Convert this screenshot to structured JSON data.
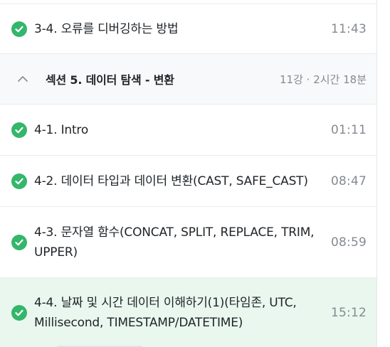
{
  "curriculum": {
    "prev_lesson": {
      "title": "3-4. 오류를 디버깅하는 방법",
      "duration": "11:43"
    },
    "section": {
      "title": "섹션 5. 데이터 탐색 - 변환",
      "meta": "11강 · 2시간 18분",
      "icon": "chevron-up-icon"
    },
    "lessons": [
      {
        "title": "4-1. Intro",
        "duration": "01:11"
      },
      {
        "title": "4-2. 데이터 타입과 데이터 변환(CAST, SAFE_CAST)",
        "duration": "08:47"
      },
      {
        "title": "4-3. 문자열 함수(CONCAT, SPLIT, REPLACE, TRIM, UPPER)",
        "duration": "08:59"
      },
      {
        "title": "4-4. 날짜 및 시간 데이터 이해하기(1)(타임존, UTC, Millisecond, TIMESTAMP/DATETIME)",
        "duration": "15:12"
      }
    ],
    "colors": {
      "check": "#34b66b",
      "active_bg": "#e9f7ef",
      "muted_text": "#858a91"
    }
  }
}
